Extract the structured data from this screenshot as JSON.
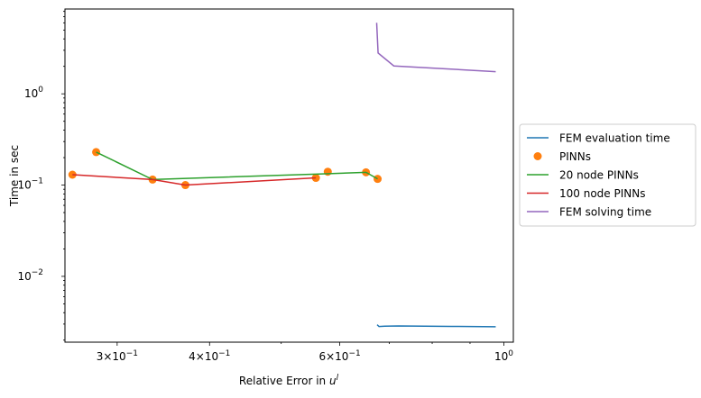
{
  "chart_data": {
    "type": "line",
    "xscale": "log",
    "yscale": "log",
    "xlabel_text": "Relative Error in ",
    "xlabel_var": "u",
    "xlabel_sup": "l",
    "ylabel": "Time in sec",
    "xlim": [
      0.255,
      1.03
    ],
    "ylim": [
      0.0019,
      8.5
    ],
    "grid": false,
    "legend_position": "center-right-outside",
    "x_ticks": [
      {
        "value": 0.3,
        "mant": "3",
        "exp": "−1"
      },
      {
        "value": 0.4,
        "mant": "4",
        "exp": "−1"
      },
      {
        "value": 0.6,
        "mant": "6",
        "exp": "−1"
      },
      {
        "value": 1.0,
        "mant": "",
        "exp": "0"
      }
    ],
    "x_minor_ticks": [
      0.5,
      0.7,
      0.8,
      0.9
    ],
    "y_ticks": [
      {
        "value": 0.01,
        "exp": "−2"
      },
      {
        "value": 0.1,
        "exp": "−1"
      },
      {
        "value": 1.0,
        "exp": "0"
      }
    ],
    "series": [
      {
        "name": "FEM evaluation time",
        "kind": "line",
        "color": "#1f77b4",
        "points": [
          [
            0.674,
            0.00295
          ],
          [
            0.678,
            0.00282
          ],
          [
            0.69,
            0.00284
          ],
          [
            0.72,
            0.00286
          ],
          [
            0.85,
            0.00283
          ],
          [
            0.975,
            0.0028
          ]
        ]
      },
      {
        "name": "PINNs",
        "kind": "scatter",
        "color": "#ff7f0e",
        "points": [
          [
            0.261,
            0.13
          ],
          [
            0.281,
            0.23
          ],
          [
            0.335,
            0.115
          ],
          [
            0.371,
            0.1
          ],
          [
            0.557,
            0.12
          ],
          [
            0.578,
            0.14
          ],
          [
            0.651,
            0.138
          ],
          [
            0.675,
            0.117
          ]
        ]
      },
      {
        "name": "20 node PINNs",
        "kind": "line",
        "color": "#2ca02c",
        "points": [
          [
            0.281,
            0.23
          ],
          [
            0.335,
            0.115
          ],
          [
            0.557,
            0.132
          ],
          [
            0.651,
            0.138
          ],
          [
            0.675,
            0.117
          ]
        ]
      },
      {
        "name": "100 node PINNs",
        "kind": "line",
        "color": "#d62728",
        "points": [
          [
            0.261,
            0.13
          ],
          [
            0.335,
            0.115
          ],
          [
            0.371,
            0.1
          ],
          [
            0.557,
            0.12
          ]
        ]
      },
      {
        "name": "FEM solving time",
        "kind": "line",
        "color": "#9467bd",
        "points": [
          [
            0.673,
            6.0
          ],
          [
            0.676,
            2.8
          ],
          [
            0.71,
            2.02
          ],
          [
            0.975,
            1.75
          ]
        ]
      }
    ]
  }
}
